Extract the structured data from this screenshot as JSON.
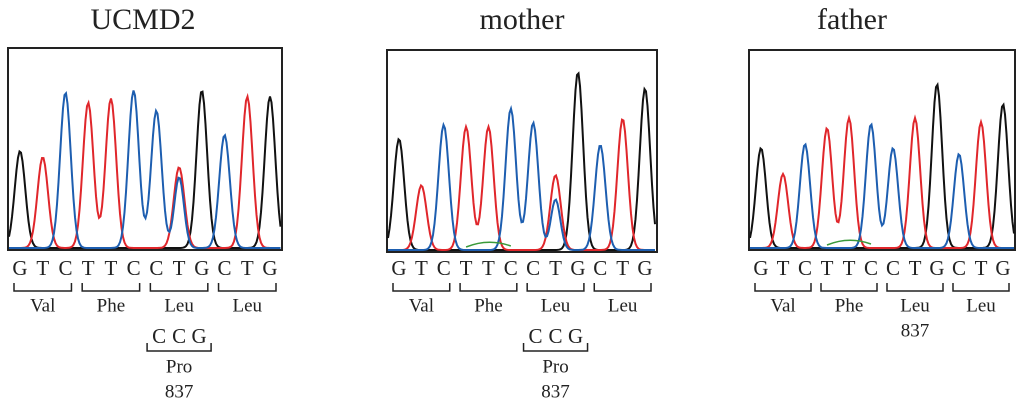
{
  "panels": [
    {
      "title": "UCMD2",
      "bases": [
        "G",
        "T",
        "C",
        "T",
        "T",
        "C",
        "C",
        "T",
        "G",
        "C",
        "T",
        "G"
      ],
      "codons": [
        "Val",
        "Phe",
        "Leu",
        "Leu"
      ],
      "variant": {
        "bases": [
          "C",
          "C",
          "G"
        ],
        "amino_acid": "Pro",
        "position": "837"
      }
    },
    {
      "title": "mother",
      "bases": [
        "G",
        "T",
        "C",
        "T",
        "T",
        "C",
        "C",
        "T",
        "G",
        "C",
        "T",
        "G"
      ],
      "codons": [
        "Val",
        "Phe",
        "Leu",
        "Leu"
      ],
      "variant": {
        "bases": [
          "C",
          "C",
          "G"
        ],
        "amino_acid": "Pro",
        "position": "837"
      }
    },
    {
      "title": "father",
      "bases": [
        "G",
        "T",
        "C",
        "T",
        "T",
        "C",
        "C",
        "T",
        "G",
        "C",
        "T",
        "G"
      ],
      "codons": [
        "Val",
        "Phe",
        "Leu",
        "Leu"
      ],
      "position": "837"
    }
  ]
}
